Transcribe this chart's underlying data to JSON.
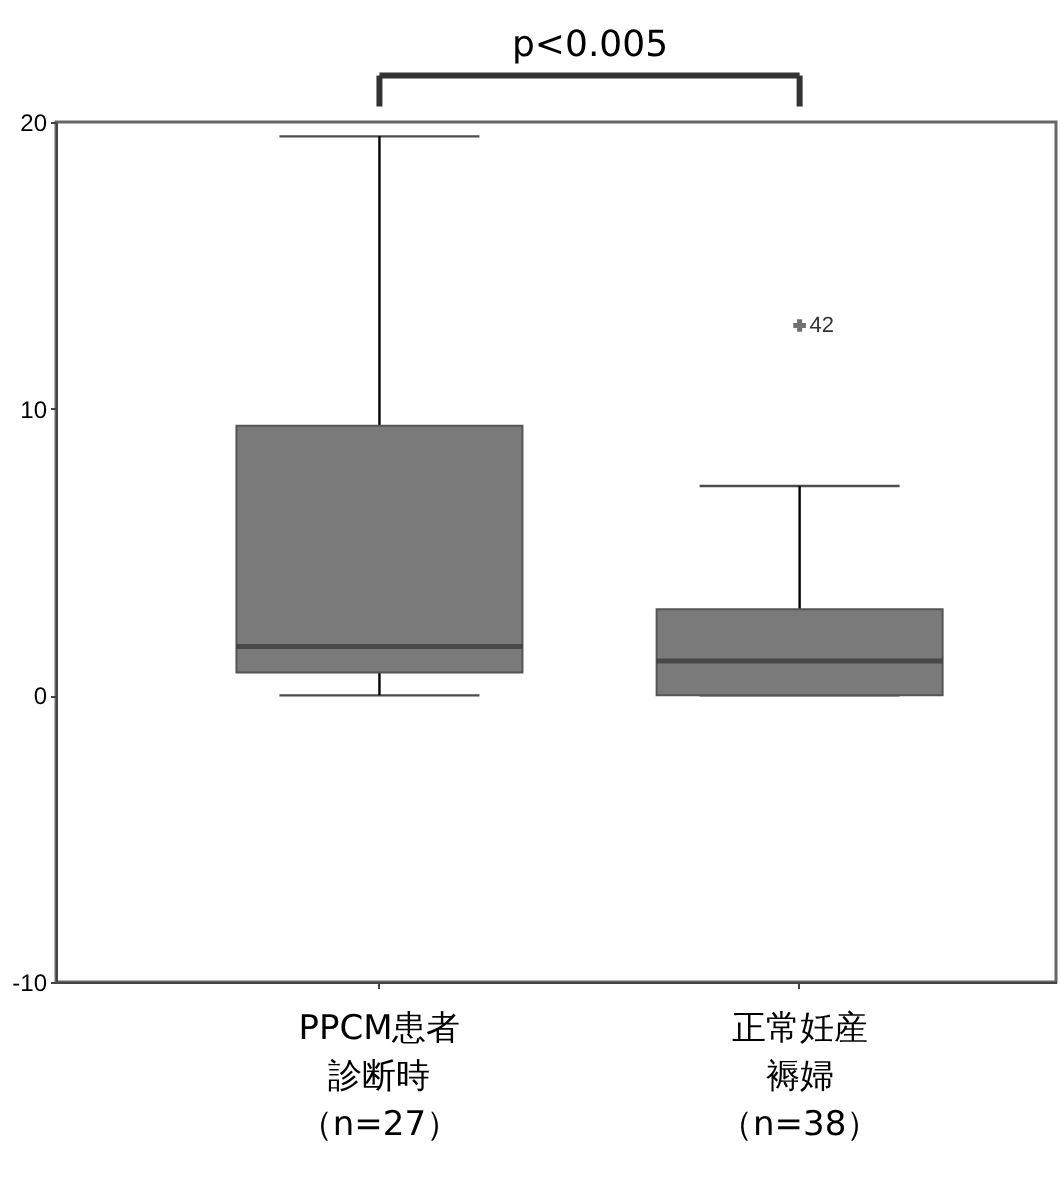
{
  "chart_data": {
    "type": "box",
    "categories": [
      "PPCM患者診断時（n=27）",
      "正常妊産褥婦（n=38）"
    ],
    "boxes": [
      {
        "low": 0,
        "q1": 0.8,
        "median": 1.7,
        "q3": 9.4,
        "high": 19.5
      },
      {
        "low": 0,
        "q1": 0,
        "median": 1.2,
        "q3": 3.0,
        "high": 7.3,
        "outliers": [
          12.9
        ]
      }
    ],
    "color": "#7a7a7a",
    "marker": "cross",
    "ylim": [
      -10,
      20
    ],
    "yticks": [
      -10,
      0,
      10,
      20
    ],
    "grid": false,
    "annotations": [
      "p<0.005",
      "42"
    ]
  }
}
